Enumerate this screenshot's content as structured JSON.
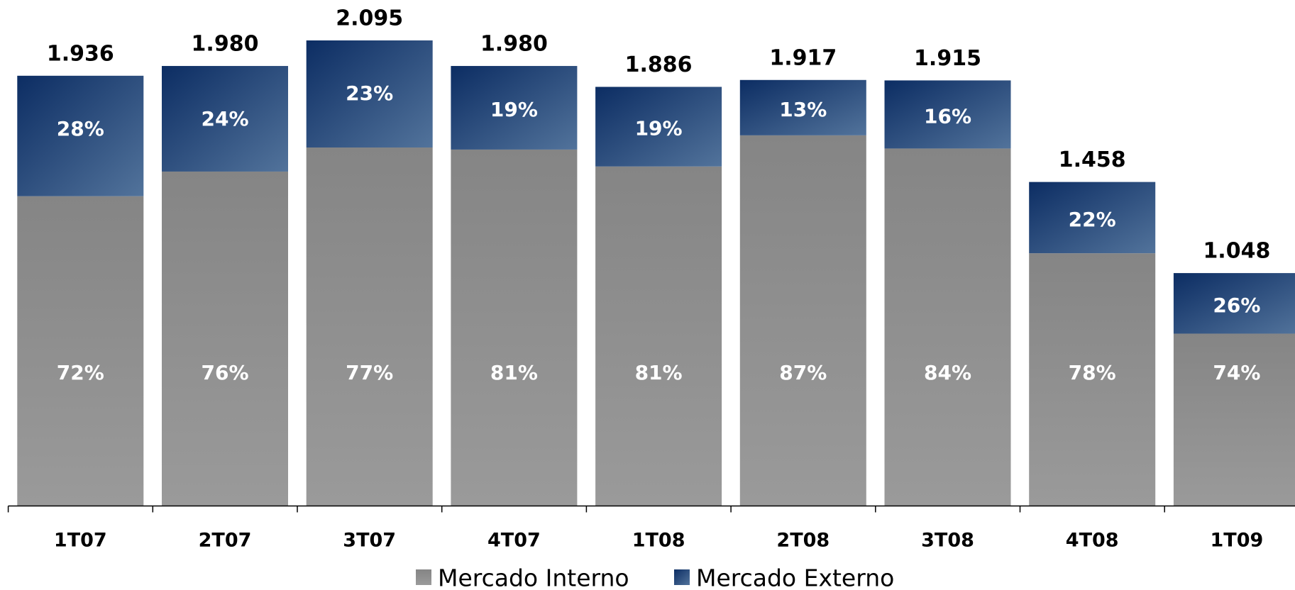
{
  "chart_data": {
    "type": "stacked_bar",
    "categories": [
      "1T07",
      "2T07",
      "3T07",
      "4T07",
      "1T08",
      "2T08",
      "3T08",
      "4T08",
      "1T09"
    ],
    "totals": {
      "values": [
        1.936,
        1.98,
        2.095,
        1.98,
        1.886,
        1.917,
        1.915,
        1.458,
        1.048
      ],
      "value_labels": [
        "1.936",
        "1.980",
        "2.095",
        "1.980",
        "1.886",
        "1.917",
        "1.915",
        "1.458",
        "1.048"
      ]
    },
    "series": [
      {
        "name": "Mercado Interno",
        "color": "#8c8c8c",
        "values": [
          72,
          76,
          77,
          81,
          81,
          87,
          84,
          78,
          74
        ],
        "value_labels": [
          "72%",
          "76%",
          "77%",
          "81%",
          "81%",
          "87%",
          "84%",
          "78%",
          "74%"
        ]
      },
      {
        "name": "Mercado Externo",
        "color": "#2c5282",
        "values": [
          28,
          24,
          23,
          19,
          19,
          13,
          16,
          22,
          26
        ],
        "value_labels": [
          "28%",
          "24%",
          "23%",
          "19%",
          "19%",
          "13%",
          "16%",
          "22%",
          "26%"
        ]
      }
    ],
    "legend": "bottom"
  }
}
